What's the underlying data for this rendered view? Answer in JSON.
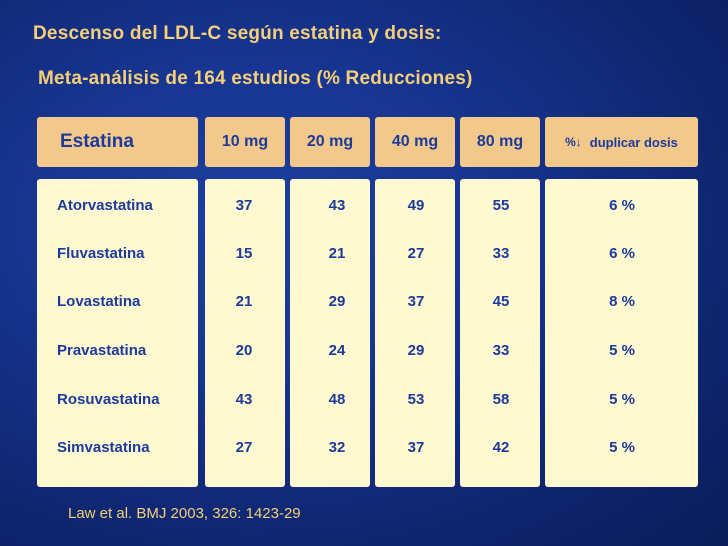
{
  "title": {
    "line1": "Descenso del LDL-C según estatina y dosis:",
    "line2": "Meta-análisis de 164 estudios (% Reducciones)"
  },
  "table": {
    "headers": {
      "statin": "Estatina",
      "d10": "10 mg",
      "d20": "20 mg",
      "d40": "40 mg",
      "d80": "80 mg",
      "duplicate_symbol": "%↓",
      "duplicate_label": "duplicar dosis"
    },
    "rows": [
      {
        "name": "Atorvastatina",
        "d10": "37",
        "d20": "43",
        "d40": "49",
        "d80": "55",
        "duplicate": "6 %"
      },
      {
        "name": "Fluvastatina",
        "d10": "15",
        "d20": "21",
        "d40": "27",
        "d80": "33",
        "duplicate": "6 %"
      },
      {
        "name": "Lovastatina",
        "d10": "21",
        "d20": "29",
        "d40": "37",
        "d80": "45",
        "duplicate": "8 %"
      },
      {
        "name": "Pravastatina",
        "d10": "20",
        "d20": "24",
        "d40": "29",
        "d80": "33",
        "duplicate": "5 %"
      },
      {
        "name": "Rosuvastatina",
        "d10": "43",
        "d20": "48",
        "d40": "53",
        "d80": "58",
        "duplicate": "5 %"
      },
      {
        "name": "Simvastatina",
        "d10": "27",
        "d20": "32",
        "d40": "37",
        "d80": "42",
        "duplicate": "5 %"
      }
    ]
  },
  "citation": "Law et al. BMJ 2003, 326: 1423-29"
}
